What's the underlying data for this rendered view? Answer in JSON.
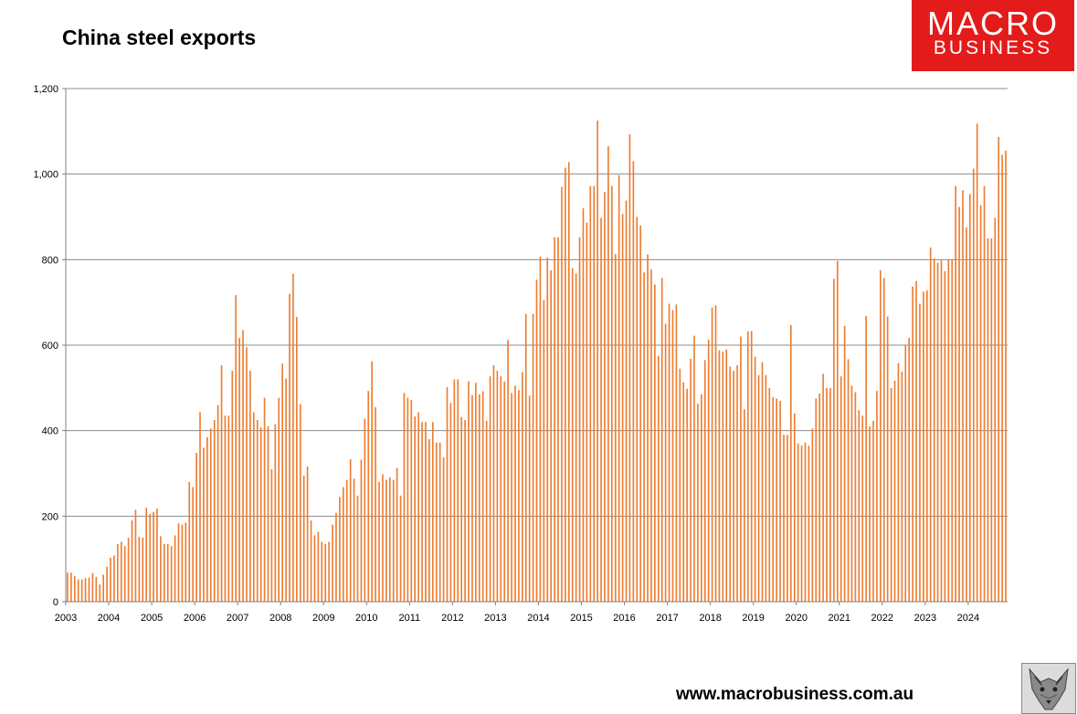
{
  "header": {
    "title": "China steel exports"
  },
  "logo": {
    "line1": "MACRO",
    "line2": "BUSINESS",
    "color": "#e31b1b"
  },
  "footer": {
    "website": "www.macrobusiness.com.au",
    "mascot_icon": "wolf-icon"
  },
  "colors": {
    "bar": "#ed7d31",
    "grid": "#8c8c8c",
    "axis": "#808080"
  },
  "chart_data": {
    "type": "bar",
    "title": "China steel exports",
    "xlabel": "",
    "ylabel": "",
    "ylim": [
      0,
      1200
    ],
    "yticks": [
      "0",
      "200",
      "400",
      "600",
      "800",
      "1,000",
      "1,200"
    ],
    "xticks": [
      "2003",
      "2004",
      "2005",
      "2006",
      "2007",
      "2008",
      "2009",
      "2010",
      "2011",
      "2012",
      "2013",
      "2014",
      "2015",
      "2016",
      "2017",
      "2018",
      "2019",
      "2020",
      "2021",
      "2022",
      "2023",
      "2024"
    ],
    "grid": true,
    "frequency": "monthly",
    "start": "2003-01",
    "end": "2024-11",
    "series": [
      {
        "name": "",
        "values": [
          68,
          68,
          60,
          52,
          52,
          55,
          56,
          67,
          58,
          40,
          63,
          82,
          103,
          108,
          135,
          140,
          130,
          150,
          190,
          215,
          152,
          150,
          220,
          205,
          210,
          218,
          153,
          135,
          135,
          130,
          155,
          183,
          180,
          185,
          280,
          268,
          348,
          443,
          360,
          385,
          405,
          425,
          460,
          553,
          435,
          435,
          540,
          717,
          617,
          635,
          595,
          540,
          443,
          425,
          408,
          477,
          410,
          310,
          415,
          477,
          557,
          522,
          720,
          767,
          666,
          462,
          295,
          316,
          190,
          155,
          163,
          140,
          135,
          140,
          180,
          208,
          245,
          268,
          285,
          333,
          288,
          248,
          332,
          428,
          493,
          562,
          455,
          280,
          298,
          285,
          291,
          285,
          313,
          248,
          488,
          477,
          472,
          433,
          443,
          420,
          420,
          380,
          420,
          372,
          372,
          338,
          502,
          465,
          520,
          520,
          432,
          425,
          515,
          483,
          512,
          485,
          492,
          423,
          527,
          553,
          540,
          527,
          515,
          612,
          488,
          505,
          495,
          537,
          673,
          482,
          673,
          753,
          807,
          705,
          805,
          775,
          852,
          852,
          970,
          1015,
          1028,
          780,
          768,
          852,
          920,
          887,
          972,
          972,
          1125,
          898,
          958,
          1065,
          972,
          813,
          997,
          907,
          938,
          1093,
          1030,
          900,
          880,
          770,
          812,
          777,
          742,
          575,
          757,
          650,
          697,
          682,
          695,
          545,
          513,
          498,
          568,
          622,
          463,
          485,
          565,
          613,
          688,
          693,
          588,
          585,
          590,
          550,
          540,
          553,
          620,
          450,
          632,
          633,
          573,
          530,
          560,
          530,
          500,
          478,
          475,
          470,
          390,
          390,
          647,
          440,
          370,
          365,
          372,
          365,
          405,
          475,
          487,
          533,
          500,
          500,
          755,
          797,
          527,
          645,
          567,
          505,
          490,
          448,
          435,
          668,
          410,
          423,
          493,
          775,
          757,
          667,
          500,
          517,
          558,
          538,
          600,
          617,
          737,
          750,
          697,
          725,
          728,
          828,
          803,
          793,
          800,
          773,
          800,
          800,
          972,
          923,
          962,
          875,
          953,
          1013,
          1118,
          927,
          972,
          850,
          850,
          898,
          1087,
          1045,
          1055
        ]
      }
    ]
  }
}
